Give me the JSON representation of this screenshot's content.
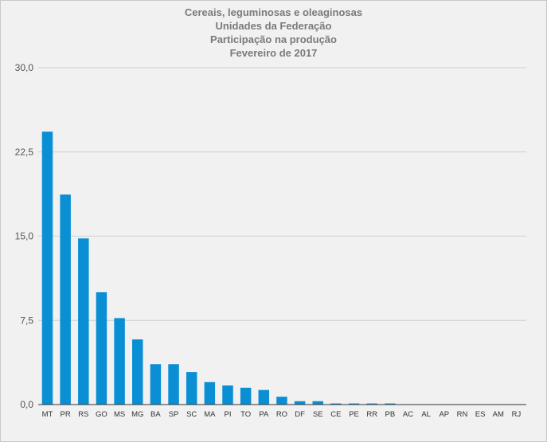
{
  "chart_data": {
    "type": "bar",
    "title_lines": [
      "Cereais, leguminosas e oleaginosas",
      "Unidades da Federação",
      "Participação na produção",
      "Fevereiro de 2017"
    ],
    "categories": [
      "MT",
      "PR",
      "RS",
      "GO",
      "MS",
      "MG",
      "BA",
      "SP",
      "SC",
      "MA",
      "PI",
      "TO",
      "PA",
      "RO",
      "DF",
      "SE",
      "CE",
      "PE",
      "RR",
      "PB",
      "AC",
      "AL",
      "AP",
      "RN",
      "ES",
      "AM",
      "RJ"
    ],
    "values": [
      24.3,
      18.7,
      14.8,
      10.0,
      7.7,
      5.8,
      3.6,
      3.6,
      2.9,
      2.0,
      1.7,
      1.5,
      1.3,
      0.7,
      0.3,
      0.3,
      0.1,
      0.1,
      0.1,
      0.1,
      0.0,
      0.0,
      0.0,
      0.0,
      0.0,
      0.0,
      0.0
    ],
    "yticks": [
      "0,0",
      "7,5",
      "15,0",
      "22,5",
      "30,0"
    ],
    "ylim": [
      0,
      30
    ],
    "grid": true,
    "bar_color": "#0a8fd4",
    "grid_color": "#cfcfcf",
    "axis_color": "#333333"
  }
}
